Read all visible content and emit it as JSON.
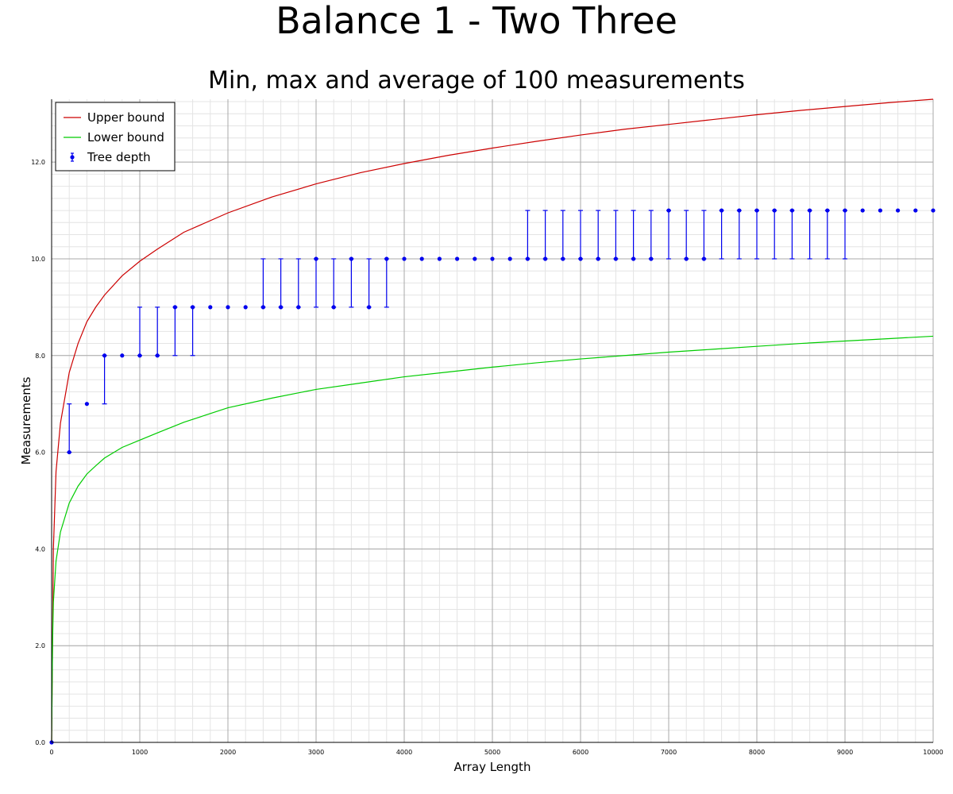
{
  "chart_data": {
    "type": "line",
    "title": "Balance 1 - Two Three",
    "subtitle": "Min, max and average of 100 measurements",
    "xlabel": "Array Length",
    "ylabel": "Measurements",
    "xlim": [
      0,
      10000
    ],
    "ylim": [
      0,
      13.3
    ],
    "x_ticks": [
      0,
      1000,
      2000,
      3000,
      4000,
      5000,
      6000,
      7000,
      8000,
      9000,
      10000
    ],
    "x_tick_labels": [
      "0",
      "1000",
      "2000",
      "3000",
      "4000",
      "5000",
      "6000",
      "7000",
      "8000",
      "9000",
      "10000"
    ],
    "y_ticks": [
      0,
      2,
      4,
      6,
      8,
      10,
      12
    ],
    "y_tick_labels": [
      "0.0",
      "2.0",
      "4.0",
      "6.0",
      "8.0",
      "10.0",
      "12.0"
    ],
    "grid": true,
    "minor_grid": true,
    "legend_position": "top-left",
    "series": [
      {
        "name": "Upper bound",
        "kind": "line",
        "color": "#cc0000",
        "x": [
          0,
          10,
          20,
          50,
          100,
          200,
          300,
          400,
          500,
          600,
          800,
          1000,
          1200,
          1500,
          2000,
          2500,
          3000,
          3500,
          4000,
          4500,
          5000,
          5500,
          6000,
          6500,
          7000,
          7500,
          8000,
          8500,
          9000,
          9500,
          10000
        ],
        "y": [
          0,
          2.0,
          4.0,
          5.6,
          6.6,
          7.65,
          8.25,
          8.7,
          9.0,
          9.25,
          9.65,
          9.95,
          10.2,
          10.55,
          10.95,
          11.28,
          11.55,
          11.78,
          11.97,
          12.14,
          12.29,
          12.43,
          12.56,
          12.68,
          12.78,
          12.88,
          12.98,
          13.07,
          13.15,
          13.23,
          13.3
        ]
      },
      {
        "name": "Lower bound",
        "kind": "line",
        "color": "#00cc00",
        "x": [
          0,
          10,
          20,
          50,
          100,
          200,
          300,
          400,
          500,
          600,
          800,
          1000,
          1200,
          1500,
          2000,
          2500,
          3000,
          3500,
          4000,
          4500,
          5000,
          5500,
          6000,
          6500,
          7000,
          7500,
          8000,
          8500,
          9000,
          9500,
          10000
        ],
        "y": [
          0,
          2.0,
          2.9,
          3.75,
          4.35,
          4.95,
          5.3,
          5.55,
          5.72,
          5.88,
          6.1,
          6.25,
          6.4,
          6.62,
          6.92,
          7.12,
          7.3,
          7.43,
          7.56,
          7.66,
          7.76,
          7.85,
          7.93,
          8.0,
          8.07,
          8.13,
          8.19,
          8.25,
          8.3,
          8.35,
          8.4
        ]
      },
      {
        "name": "Tree depth",
        "kind": "errorbar",
        "color": "#0000ee",
        "x": [
          0,
          200,
          400,
          600,
          800,
          1000,
          1200,
          1400,
          1600,
          1800,
          2000,
          2200,
          2400,
          2600,
          2800,
          3000,
          3200,
          3400,
          3600,
          3800,
          4000,
          4200,
          4400,
          4600,
          4800,
          5000,
          5200,
          5400,
          5600,
          5800,
          6000,
          6200,
          6400,
          6600,
          6800,
          7000,
          7200,
          7400,
          7600,
          7800,
          8000,
          8200,
          8400,
          8600,
          8800,
          9000,
          9200,
          9400,
          9600,
          9800,
          10000
        ],
        "y": [
          0,
          6,
          7,
          8,
          8,
          8,
          8,
          9,
          9,
          9,
          9,
          9,
          9,
          9,
          9,
          10,
          9,
          10,
          9,
          10,
          10,
          10,
          10,
          10,
          10,
          10,
          10,
          10,
          10,
          10,
          10,
          10,
          10,
          10,
          10,
          11,
          10,
          10,
          11,
          11,
          11,
          11,
          11,
          11,
          11,
          11,
          11,
          11,
          11,
          11,
          11
        ],
        "min": [
          0,
          6,
          7,
          7,
          8,
          8,
          8,
          8,
          8,
          9,
          9,
          9,
          9,
          9,
          9,
          9,
          9,
          9,
          9,
          9,
          10,
          10,
          10,
          10,
          10,
          10,
          10,
          10,
          10,
          10,
          10,
          10,
          10,
          10,
          10,
          10,
          10,
          10,
          10,
          10,
          10,
          10,
          10,
          10,
          10,
          10,
          11,
          11,
          11,
          11,
          11
        ],
        "max": [
          0,
          7,
          7,
          8,
          8,
          9,
          9,
          9,
          9,
          9,
          9,
          9,
          10,
          10,
          10,
          10,
          10,
          10,
          10,
          10,
          10,
          10,
          10,
          10,
          10,
          10,
          10,
          11,
          11,
          11,
          11,
          11,
          11,
          11,
          11,
          11,
          11,
          11,
          11,
          11,
          11,
          11,
          11,
          11,
          11,
          11,
          11,
          11,
          11,
          11,
          11
        ]
      }
    ]
  }
}
